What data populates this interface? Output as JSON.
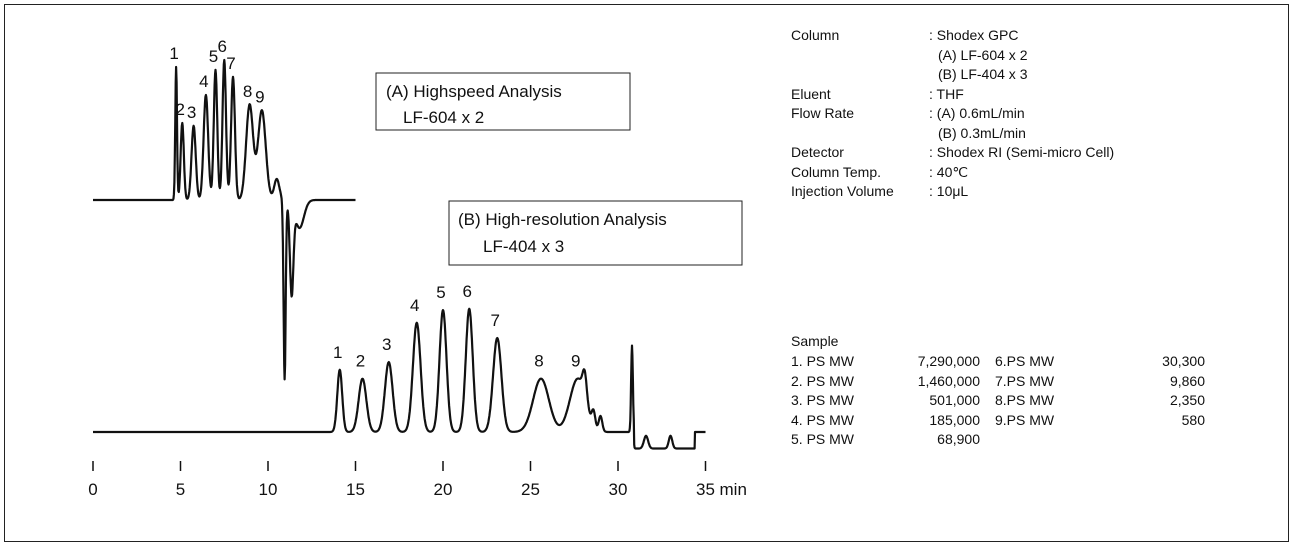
{
  "chart_data": {
    "type": "line",
    "title": "",
    "xlabel": "",
    "x_unit": "min",
    "xlim": [
      0,
      35
    ],
    "x_ticks": [
      0,
      5,
      10,
      15,
      20,
      25,
      30,
      35
    ],
    "x_tick_labels": [
      "0",
      "5",
      "10",
      "15",
      "20",
      "25",
      "30",
      "35"
    ],
    "grid": false,
    "series": [
      {
        "name": "(A) Highspeed Analysis",
        "column": "LF-604 x 2",
        "label_line1": "(A) Highspeed Analysis",
        "label_line2": "LF-604 x 2",
        "peaks": [
          {
            "label": "1",
            "t": 4.75,
            "h": 0.95
          },
          {
            "label": "2",
            "t": 5.1,
            "h": 0.55
          },
          {
            "label": "3",
            "t": 5.75,
            "h": 0.53
          },
          {
            "label": "4",
            "t": 6.45,
            "h": 0.75
          },
          {
            "label": "5",
            "t": 7.0,
            "h": 0.93
          },
          {
            "label": "6",
            "t": 7.5,
            "h": 1.0
          },
          {
            "label": "7",
            "t": 8.0,
            "h": 0.88
          },
          {
            "label": "8",
            "t": 8.95,
            "h": 0.68
          },
          {
            "label": "9",
            "t": 9.65,
            "h": 0.64
          }
        ]
      },
      {
        "name": "(B) High-resolution Analysis",
        "column": "LF-404 x 3",
        "label_line1": "(B) High-resolution Analysis",
        "label_line2": "LF-404 x 3",
        "peaks": [
          {
            "label": "1",
            "t": 14.1,
            "h": 0.49
          },
          {
            "label": "2",
            "t": 15.4,
            "h": 0.42
          },
          {
            "label": "3",
            "t": 16.9,
            "h": 0.55
          },
          {
            "label": "4",
            "t": 18.5,
            "h": 0.86
          },
          {
            "label": "5",
            "t": 20.0,
            "h": 0.96
          },
          {
            "label": "6",
            "t": 21.5,
            "h": 0.97
          },
          {
            "label": "7",
            "t": 23.1,
            "h": 0.74
          },
          {
            "label": "8",
            "t": 25.6,
            "h": 0.42
          },
          {
            "label": "9",
            "t": 27.7,
            "h": 0.42
          }
        ]
      }
    ]
  },
  "conditions": [
    {
      "key": "Column",
      "value": ": Shodex GPC"
    },
    {
      "key": "",
      "value": "(A) LF-604 x 2"
    },
    {
      "key": "",
      "value": "(B) LF-404 x 3"
    },
    {
      "key": "Eluent",
      "value": ": THF"
    },
    {
      "key": "Flow Rate",
      "value": ": (A) 0.6mL/min"
    },
    {
      "key": "",
      "value": "(B) 0.3mL/min"
    },
    {
      "key": "Detector",
      "value": ": Shodex RI (Semi-micro Cell)"
    },
    {
      "key": "Column Temp.",
      "value": ": 40℃"
    },
    {
      "key": "Injection Volume",
      "value": ": 10μL"
    }
  ],
  "sample": {
    "title": "Sample",
    "left": [
      {
        "name": "1. PS MW",
        "mw": "7,290,000"
      },
      {
        "name": "2. PS MW",
        "mw": "1,460,000"
      },
      {
        "name": "3. PS MW",
        "mw": "501,000"
      },
      {
        "name": "4. PS MW",
        "mw": "185,000"
      },
      {
        "name": "5. PS MW",
        "mw": "68,900"
      }
    ],
    "right": [
      {
        "name": "6.PS MW",
        "mw": "30,300"
      },
      {
        "name": "7.PS MW",
        "mw": "9,860"
      },
      {
        "name": "8.PS MW",
        "mw": "2,350"
      },
      {
        "name": "9.PS MW",
        "mw": "580"
      }
    ]
  }
}
